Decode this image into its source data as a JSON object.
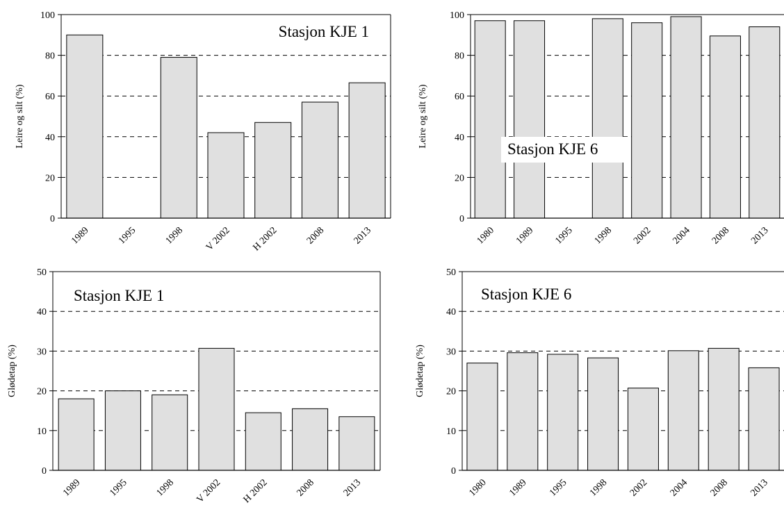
{
  "colors": {
    "bar_fill": "#e0e0e0",
    "bar_stroke": "#000000",
    "grid": "#000000",
    "background": "#ffffff"
  },
  "chart_data": [
    {
      "type": "bar",
      "title": "Stasjon KJE 1",
      "ylabel": "Leire og silt (%)",
      "xlabel": "",
      "categories": [
        "1989",
        "1995",
        "1998",
        "V 2002",
        "H 2002",
        "2008",
        "2013"
      ],
      "values": [
        90,
        null,
        79,
        42,
        47,
        57,
        66.5
      ],
      "ylim": [
        0,
        100
      ],
      "yticks": [
        "0",
        "20",
        "40",
        "60",
        "80",
        "100"
      ],
      "grid": "horizontal dashed",
      "title_placement": "top-right"
    },
    {
      "type": "bar",
      "title": "Stasjon KJE 6",
      "ylabel": "Leire og silt (%)",
      "xlabel": "",
      "categories": [
        "1980",
        "1989",
        "1995",
        "1998",
        "2002",
        "2004",
        "2008",
        "2013"
      ],
      "values": [
        97,
        97,
        null,
        98,
        96,
        99,
        89.5,
        94
      ],
      "ylim": [
        0,
        100
      ],
      "yticks": [
        "0",
        "20",
        "40",
        "60",
        "80",
        "100"
      ],
      "grid": "horizontal dashed",
      "title_placement": "middle-left"
    },
    {
      "type": "bar",
      "title": "Stasjon KJE 1",
      "ylabel": "Glødetap (%)",
      "xlabel": "",
      "categories": [
        "1989",
        "1995",
        "1998",
        "V 2002",
        "H 2002",
        "2008",
        "2013"
      ],
      "values": [
        18,
        20,
        19,
        30.7,
        14.5,
        15.5,
        13.5
      ],
      "ylim": [
        0,
        50
      ],
      "yticks": [
        "0",
        "10",
        "20",
        "30",
        "40",
        "50"
      ],
      "grid": "horizontal dashed",
      "title_placement": "top-left"
    },
    {
      "type": "bar",
      "title": "Stasjon KJE 6",
      "ylabel": "Glødetap (%)",
      "xlabel": "",
      "categories": [
        "1980",
        "1989",
        "1995",
        "1998",
        "2002",
        "2004",
        "2008",
        "2013"
      ],
      "values": [
        27,
        29.6,
        29.2,
        28.3,
        20.7,
        30.1,
        30.7,
        25.8
      ],
      "ylim": [
        0,
        50
      ],
      "yticks": [
        "0",
        "10",
        "20",
        "30",
        "40",
        "50"
      ],
      "grid": "horizontal dashed",
      "title_placement": "top-left"
    }
  ]
}
